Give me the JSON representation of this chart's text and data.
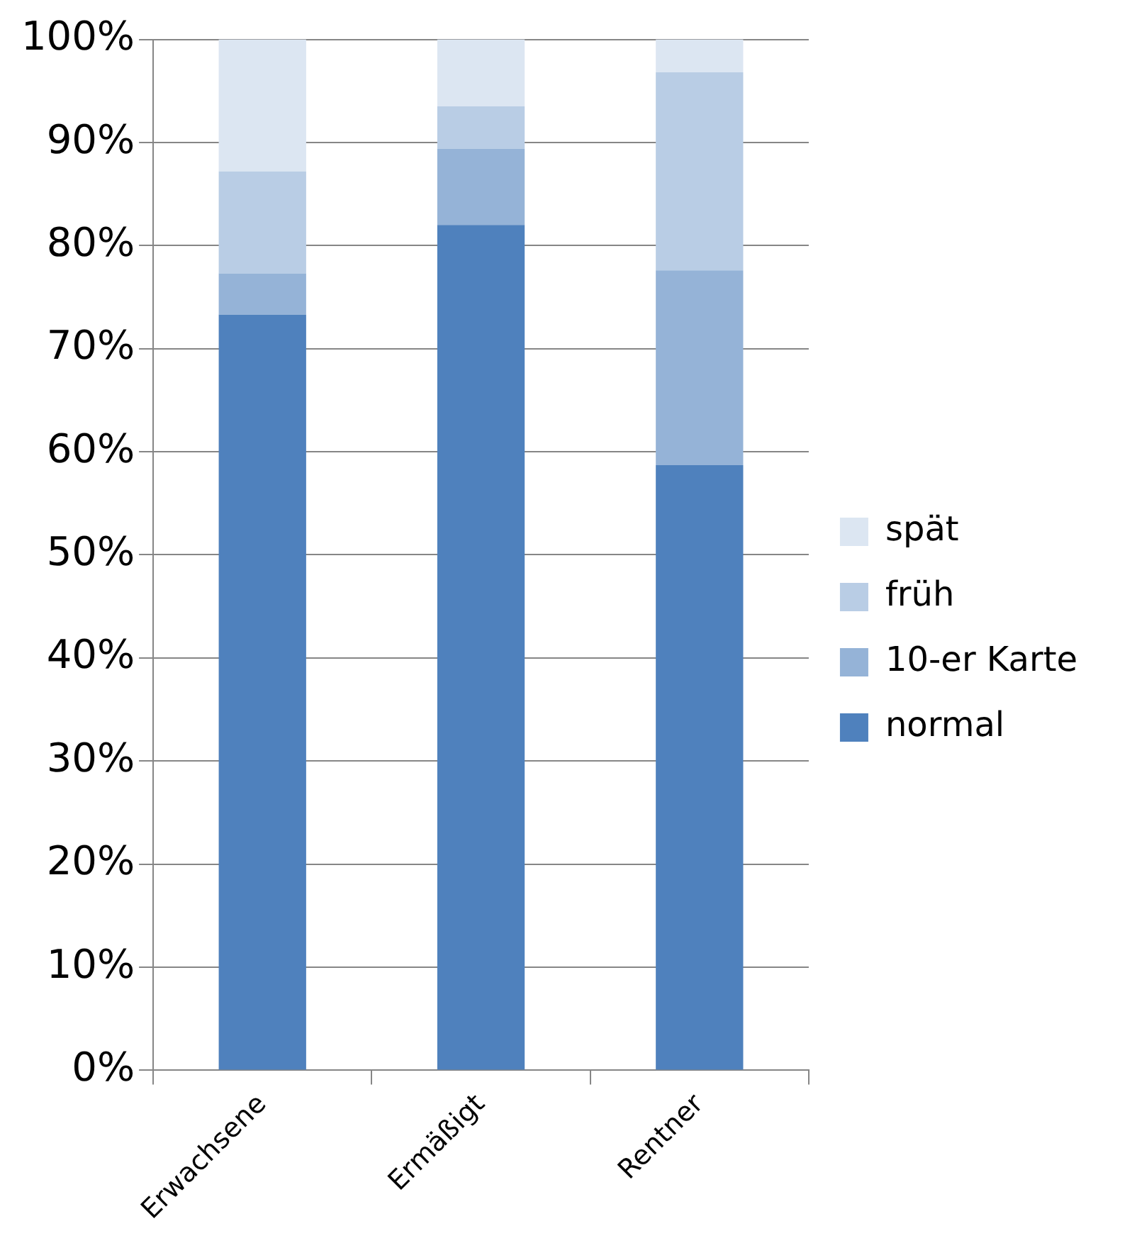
{
  "chart_data": {
    "type": "bar",
    "stacked": true,
    "categories": [
      "Erwachsene",
      "Ermäßigt",
      "Rentner"
    ],
    "series": [
      {
        "name": "normal",
        "color": "#4f81bd",
        "values": [
          73.3,
          82.0,
          58.7
        ]
      },
      {
        "name": "10-er Karte",
        "color": "#95b3d7",
        "values": [
          4.0,
          7.4,
          18.9
        ]
      },
      {
        "name": "früh",
        "color": "#b9cde5",
        "values": [
          9.9,
          4.1,
          19.2
        ]
      },
      {
        "name": "spät",
        "color": "#dce6f2",
        "values": [
          12.8,
          6.5,
          3.2
        ]
      }
    ],
    "ylim": [
      0,
      100
    ],
    "yticks": [
      {
        "value": 0,
        "label": "0%"
      },
      {
        "value": 10,
        "label": "10%"
      },
      {
        "value": 20,
        "label": "20%"
      },
      {
        "value": 30,
        "label": "30%"
      },
      {
        "value": 40,
        "label": "40%"
      },
      {
        "value": 50,
        "label": "50%"
      },
      {
        "value": 60,
        "label": "60%"
      },
      {
        "value": 70,
        "label": "70%"
      },
      {
        "value": 80,
        "label": "80%"
      },
      {
        "value": 90,
        "label": "90%"
      },
      {
        "value": 100,
        "label": "100%"
      }
    ],
    "grid": "y",
    "legend": "right"
  }
}
